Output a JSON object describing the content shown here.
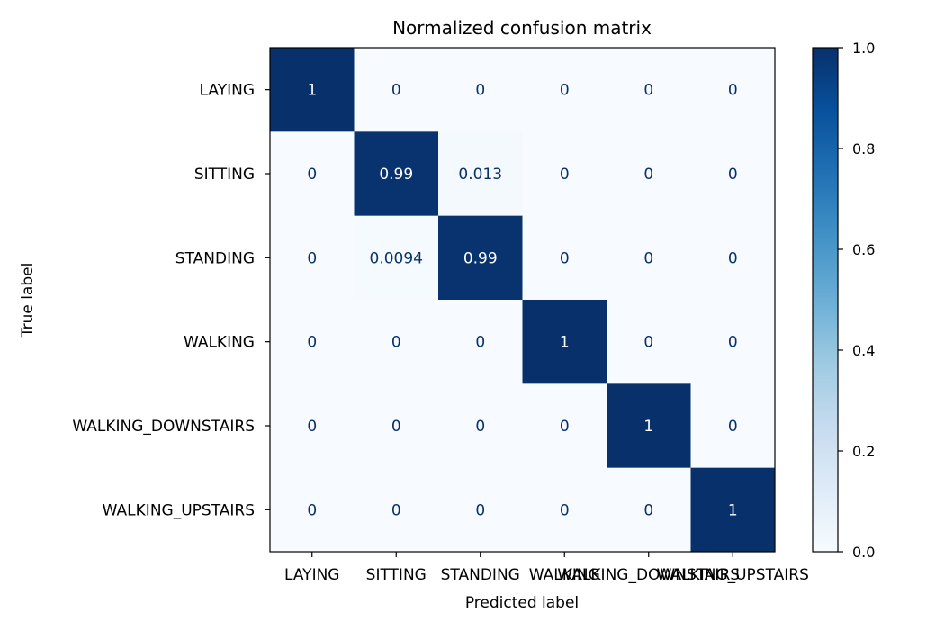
{
  "chart_data": {
    "type": "heatmap",
    "title": "Normalized confusion matrix",
    "xlabel": "Predicted label",
    "ylabel": "True label",
    "x_categories": [
      "LAYING",
      "SITTING",
      "STANDING",
      "WALKING",
      "WALKING_DOWNSTAIRS",
      "WALKING_UPSTAIRS"
    ],
    "y_categories": [
      "LAYING",
      "SITTING",
      "STANDING",
      "WALKING",
      "WALKING_DOWNSTAIRS",
      "WALKING_UPSTAIRS"
    ],
    "values": [
      [
        1,
        0,
        0,
        0,
        0,
        0
      ],
      [
        0,
        0.99,
        0.013,
        0,
        0,
        0
      ],
      [
        0,
        0.0094,
        0.99,
        0,
        0,
        0
      ],
      [
        0,
        0,
        0,
        1,
        0,
        0
      ],
      [
        0,
        0,
        0,
        0,
        1,
        0
      ],
      [
        0,
        0,
        0,
        0,
        0,
        1
      ]
    ],
    "cell_labels": [
      [
        "1",
        "0",
        "0",
        "0",
        "0",
        "0"
      ],
      [
        "0",
        "0.99",
        "0.013",
        "0",
        "0",
        "0"
      ],
      [
        "0",
        "0.0094",
        "0.99",
        "0",
        "0",
        "0"
      ],
      [
        "0",
        "0",
        "0",
        "1",
        "0",
        "0"
      ],
      [
        "0",
        "0",
        "0",
        "0",
        "1",
        "0"
      ],
      [
        "0",
        "0",
        "0",
        "0",
        "0",
        "1"
      ]
    ],
    "colormap": "Blues",
    "colormap_low": "#f7fbff",
    "colormap_high": "#08306b",
    "text_dark_color": "#08306b",
    "text_light_color": "#ffffff",
    "colorbar": {
      "range": [
        0.0,
        1.0
      ],
      "ticks": [
        "0.0",
        "0.2",
        "0.4",
        "0.6",
        "0.8",
        "1.0"
      ]
    }
  }
}
